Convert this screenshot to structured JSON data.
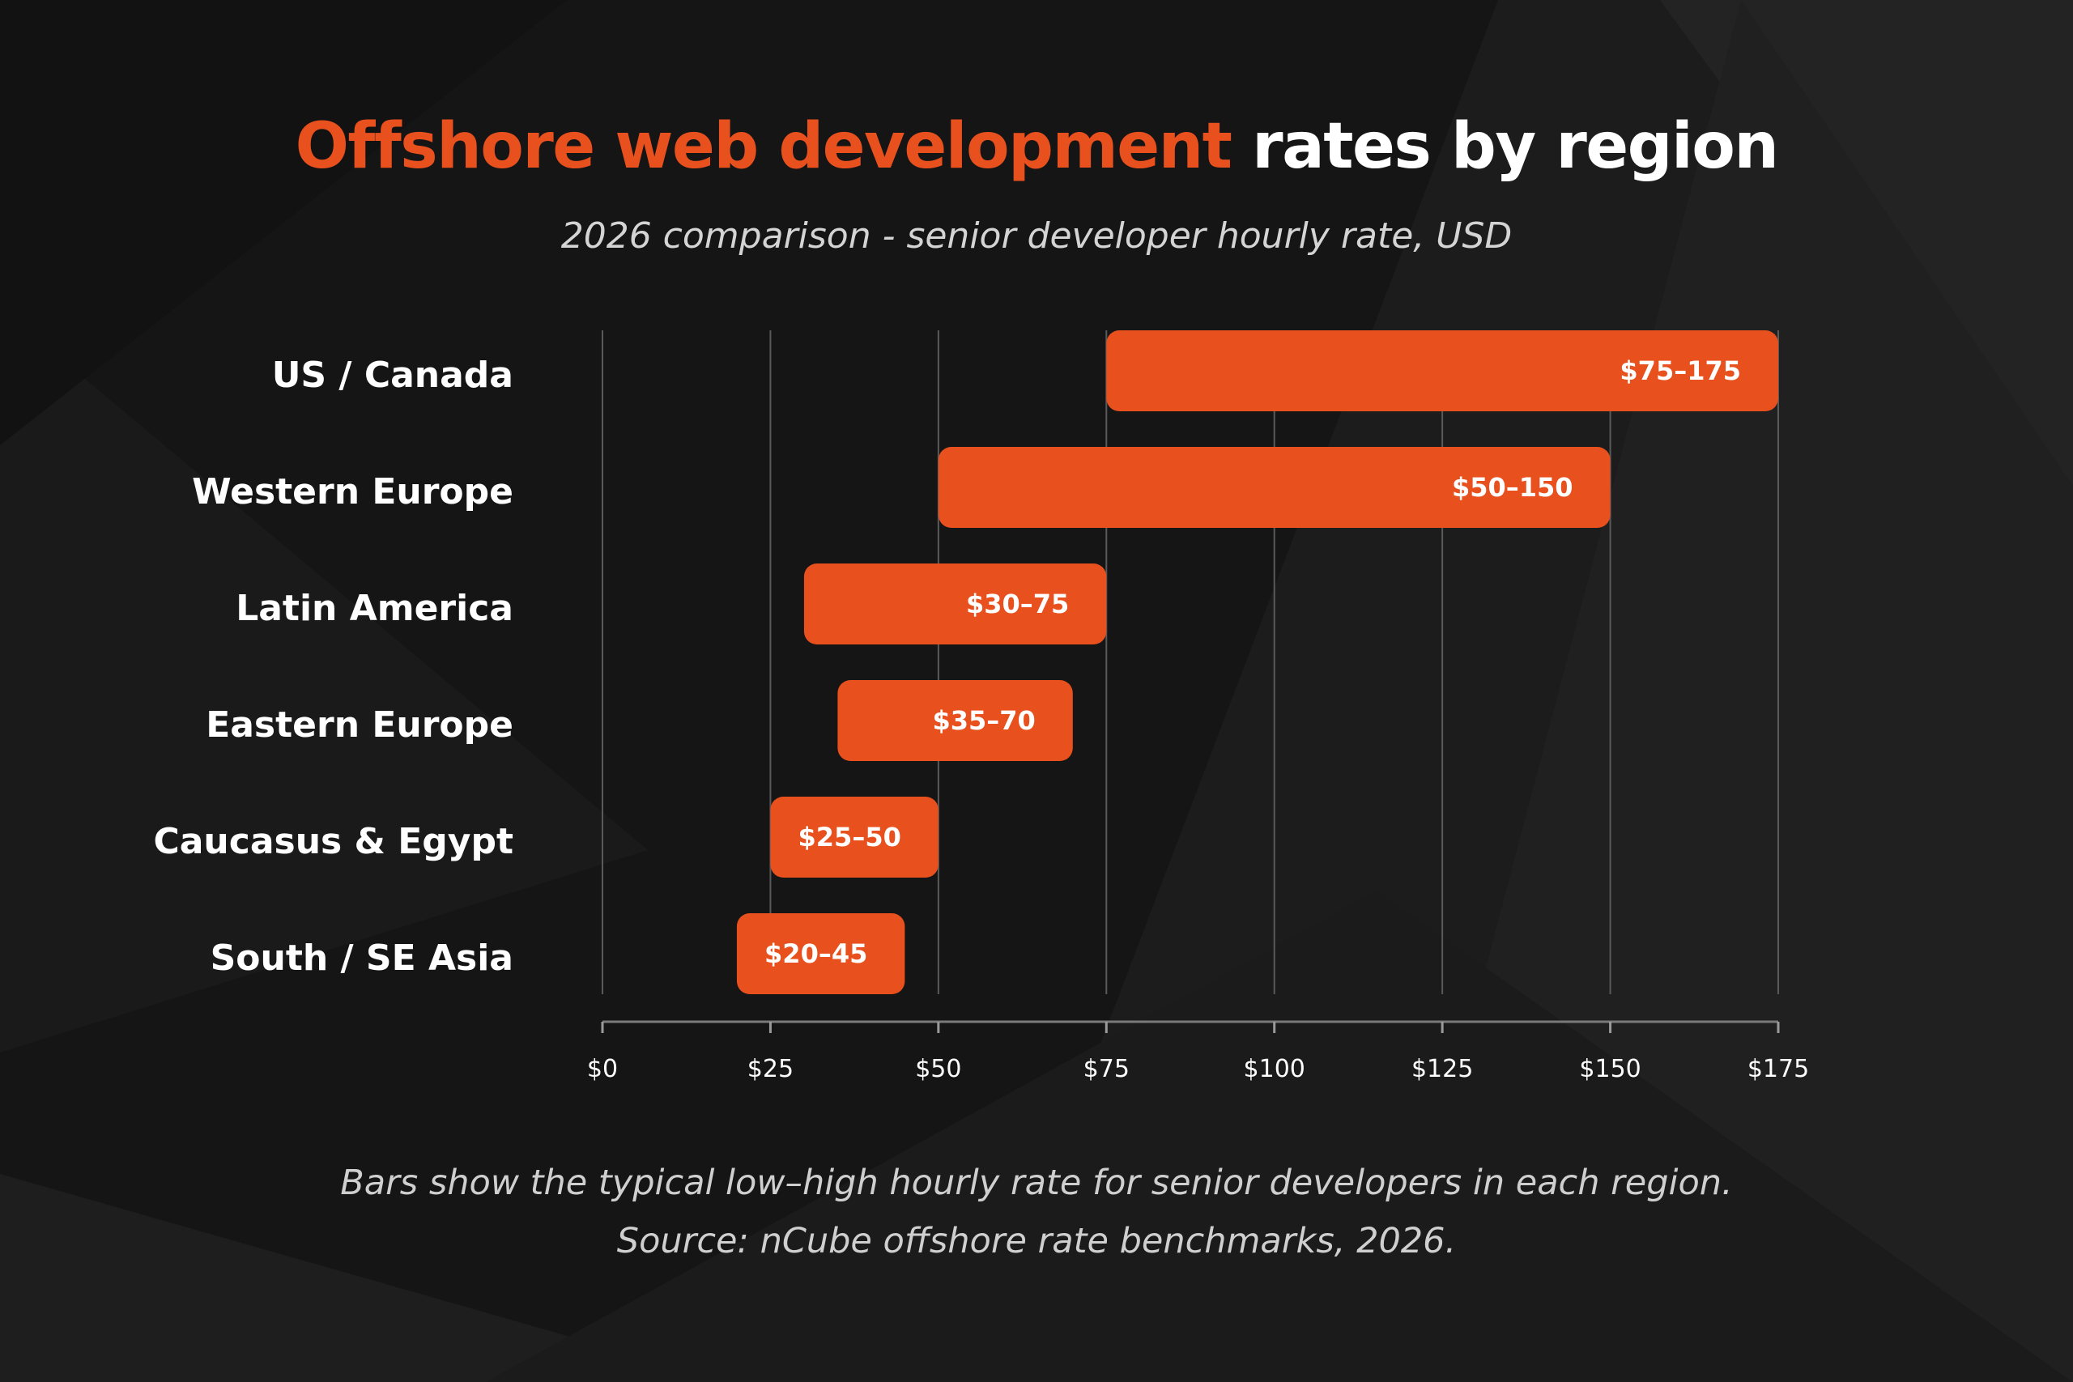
{
  "title": {
    "accent": "Offshore web development",
    "rest": " rates by region"
  },
  "subtitle": "2026 comparison - senior developer hourly rate, USD",
  "notes": {
    "line1": "Bars show the typical low–high hourly rate for senior developers in each region.",
    "line2": "Source: nCube offshore rate benchmarks, 2026."
  },
  "colors": {
    "accent": "#e8501e",
    "background": "#151515",
    "text": "#ffffff",
    "muted": "#cfcfcf",
    "grid": "#5a5a5a"
  },
  "chart_data": {
    "type": "bar",
    "orientation": "horizontal",
    "range_bars": true,
    "categories": [
      "US / Canada",
      "Western Europe",
      "Latin America",
      "Eastern Europe",
      "Caucasus & Egypt",
      "South / SE Asia"
    ],
    "series": [
      {
        "low": [
          75,
          50,
          30,
          35,
          25,
          20
        ],
        "high": [
          175,
          150,
          75,
          70,
          50,
          45
        ],
        "labels": [
          "$75–175",
          "$50–150",
          "$30–75",
          "$35–70",
          "$25–50",
          "$20–45"
        ]
      }
    ],
    "xlim": [
      0,
      175
    ],
    "xticks": [
      0,
      25,
      50,
      75,
      100,
      125,
      150,
      175
    ],
    "xtick_labels": [
      "$0",
      "$25",
      "$50",
      "$75",
      "$100",
      "$125",
      "$150",
      "$175"
    ],
    "grid": true,
    "title": "Offshore web development rates by region",
    "xlabel": "",
    "ylabel": ""
  }
}
